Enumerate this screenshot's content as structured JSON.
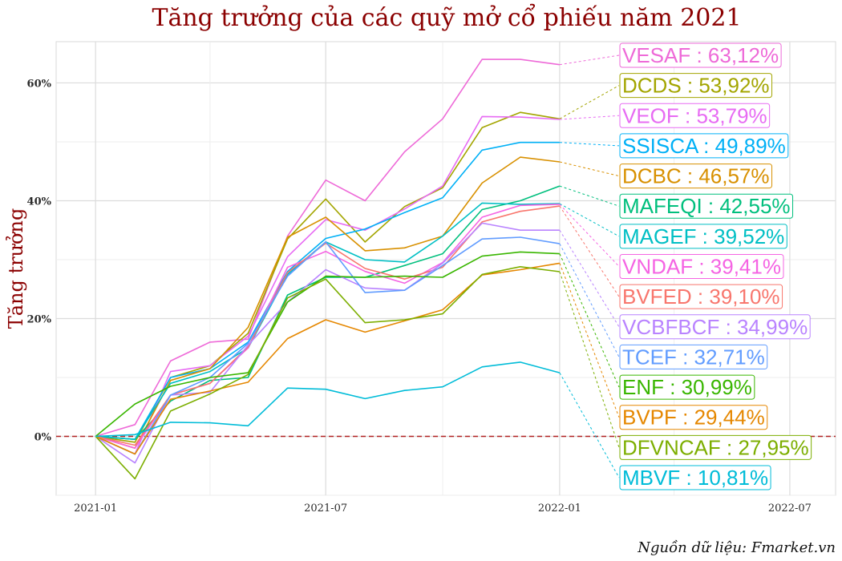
{
  "title": "Tăng trưởng của các quỹ mở cổ phiếu năm 2021",
  "caption": "Nguồn dữ liệu: Fmarket.vn",
  "chart_data": {
    "type": "line",
    "ylabel": "Tăng trưởng",
    "xlabel": "",
    "x_ticks": [
      "2021-01",
      "2021-07",
      "2022-01",
      "2022-07"
    ],
    "y_ticks": [
      "0%",
      "20%",
      "40%",
      "60%"
    ],
    "x_range": [
      "2020-12-01",
      "2022-08-06"
    ],
    "ylim": [
      -10,
      67
    ],
    "grid": true,
    "reference_line": {
      "y": 0,
      "style": "dashed",
      "color": "#b22222"
    },
    "x": [
      "2021-01-01",
      "2021-02-01",
      "2021-03-01",
      "2021-04-01",
      "2021-05-01",
      "2021-06-01",
      "2021-07-01",
      "2021-08-01",
      "2021-09-01",
      "2021-10-01",
      "2021-11-01",
      "2021-12-01",
      "2022-01-01"
    ],
    "label_format": "{name} : {value}",
    "series": [
      {
        "name": "VESAF",
        "color": "#ee6ad8",
        "label": "63,12%",
        "values": [
          0,
          2,
          12.8,
          16,
          16.5,
          34,
          43.5,
          40,
          48.3,
          53.9,
          64,
          64,
          63.1
        ]
      },
      {
        "name": "DCDS",
        "color": "#a3a500",
        "label": "53,92%",
        "values": [
          0,
          -1,
          10,
          12,
          17.5,
          33.5,
          40.3,
          33,
          39,
          42.2,
          52.4,
          55,
          53.9
        ]
      },
      {
        "name": "VEOF",
        "color": "#e76bf3",
        "label": "53,79%",
        "values": [
          0,
          -3,
          11,
          12,
          17,
          30.5,
          36.8,
          35,
          38.6,
          42.5,
          54.3,
          54.2,
          53.8
        ]
      },
      {
        "name": "SSISCA",
        "color": "#00b0f6",
        "label": "49,89%",
        "values": [
          0,
          -0.5,
          10,
          11.5,
          16,
          28,
          33.6,
          35.2,
          38,
          40.5,
          48.6,
          49.9,
          49.9
        ]
      },
      {
        "name": "DCBC",
        "color": "#d89000",
        "label": "46,57%",
        "values": [
          0,
          -2,
          9.5,
          11.5,
          18.5,
          33.8,
          37.2,
          31.5,
          32,
          34,
          43,
          47.4,
          46.6
        ]
      },
      {
        "name": "MAFEQI",
        "color": "#00bf7d",
        "label": "42,55%",
        "values": [
          0,
          -0.5,
          6,
          9.5,
          10,
          24,
          27,
          27,
          29,
          31,
          38.5,
          40,
          42.5
        ]
      },
      {
        "name": "MAGEF",
        "color": "#00bfc4",
        "label": "39,52%",
        "values": [
          0,
          -0.5,
          9,
          11,
          15,
          27.5,
          33,
          30,
          29.6,
          34,
          39.6,
          39.4,
          39.5
        ]
      },
      {
        "name": "VNDAF",
        "color": "#f564e3",
        "label": "39,41%",
        "values": [
          0,
          -2,
          7,
          9,
          15,
          28.7,
          31.4,
          28,
          26,
          29.5,
          37.2,
          39.2,
          39.4
        ]
      },
      {
        "name": "BVFED",
        "color": "#f8766d",
        "label": "39,10%",
        "values": [
          0,
          -1.5,
          7,
          9,
          15.2,
          27.8,
          32.8,
          28.5,
          26.7,
          28.7,
          36.4,
          38.2,
          39.1
        ]
      },
      {
        "name": "VCBFBCF",
        "color": "#b983ff",
        "label": "34,99%",
        "values": [
          0,
          -4.5,
          7,
          7.5,
          15.5,
          22.8,
          28.3,
          25.2,
          24.8,
          29.4,
          36.2,
          35,
          35
        ]
      },
      {
        "name": "TCEF",
        "color": "#619cff",
        "label": "32,71%",
        "values": [
          0,
          -3,
          7,
          10,
          15.8,
          27.2,
          33,
          24.4,
          24.8,
          29,
          33.5,
          33.8,
          32.7
        ]
      },
      {
        "name": "ENF",
        "color": "#39b600",
        "label": "30,99%",
        "values": [
          0,
          5.5,
          8.5,
          10,
          10.8,
          22.8,
          27.2,
          27,
          27.2,
          27,
          30.6,
          31.3,
          31
        ]
      },
      {
        "name": "BVPF",
        "color": "#e58700",
        "label": "29,44%",
        "values": [
          0,
          -3,
          6.3,
          7.7,
          9.2,
          16.6,
          19.8,
          17.7,
          19.6,
          21.5,
          27.4,
          28.3,
          29.4
        ]
      },
      {
        "name": "DFVNCAF",
        "color": "#7cae00",
        "label": "27,95%",
        "values": [
          0,
          -7.2,
          4.3,
          7.2,
          10.5,
          23.5,
          26.7,
          19.3,
          19.8,
          20.8,
          27.5,
          28.8,
          27.95
        ]
      },
      {
        "name": "MBVF",
        "color": "#00bcd8",
        "label": "10,81%",
        "values": [
          0,
          0.3,
          2.4,
          2.3,
          1.8,
          8.2,
          8,
          6.4,
          7.8,
          8.4,
          11.8,
          12.6,
          10.8
        ]
      }
    ]
  }
}
